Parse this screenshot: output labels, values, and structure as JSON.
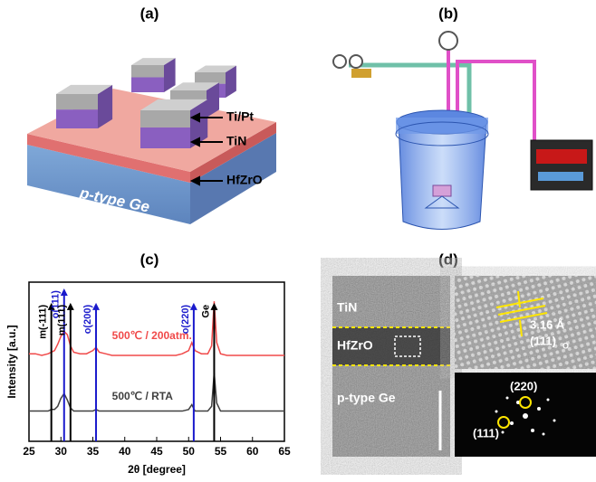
{
  "panels": {
    "a": {
      "label": "(a)",
      "layers": [
        "Ti/Pt",
        "TiN",
        "HfZrO"
      ],
      "substrate": "p-type Ge"
    },
    "b": {
      "label": "(b)"
    },
    "c": {
      "label": "(c)"
    },
    "d": {
      "label": "(d)",
      "regions": [
        "TiN",
        "HfZrO",
        "p-type Ge"
      ],
      "spacing": "3.16 Å",
      "plane": "(111)",
      "plane_phase": "O",
      "fft_spots": [
        "(220)",
        "(111)"
      ]
    }
  },
  "chart_data": {
    "type": "line",
    "x_label": "2θ [degree]",
    "y_label": "Intensity [a.u.]",
    "x": [
      25,
      26,
      27,
      28,
      28.5,
      29,
      29.5,
      30,
      30.5,
      31,
      31.5,
      32,
      33,
      34,
      35,
      35.5,
      36,
      37,
      38,
      40,
      42,
      44,
      46,
      48,
      49,
      50,
      50.5,
      51,
      52,
      53,
      53.6,
      54,
      54.4,
      55,
      56,
      58,
      60,
      62,
      64,
      65
    ],
    "series": [
      {
        "name": "500℃ / 200atm.",
        "color": "#f04a4a",
        "values": [
          55,
          55,
          54,
          55,
          56,
          57,
          61,
          66,
          69,
          67,
          60,
          56,
          55,
          55,
          57,
          59,
          56,
          55,
          54,
          54,
          54,
          54,
          54,
          54,
          55,
          57,
          62,
          57,
          55,
          55,
          60,
          88,
          62,
          55,
          54,
          54,
          54,
          54,
          54,
          54
        ]
      },
      {
        "name": "500℃ / RTA",
        "color": "#404040",
        "values": [
          19,
          19,
          19,
          19,
          20,
          20,
          22,
          27,
          30,
          26,
          21,
          19,
          19,
          19,
          19,
          20,
          19,
          19,
          19,
          19,
          19,
          19,
          19,
          19,
          19,
          20,
          23,
          19,
          19,
          19,
          22,
          43,
          24,
          19,
          19,
          19,
          19,
          19,
          19,
          19
        ]
      }
    ],
    "markers": [
      {
        "label": "m(-111)",
        "x": 28.5,
        "top": 87,
        "color": "#000000"
      },
      {
        "label": "o(111)",
        "x": 30.5,
        "top": 96,
        "color": "#1a1acc"
      },
      {
        "label": "m(111)",
        "x": 31.5,
        "top": 87,
        "color": "#000000"
      },
      {
        "label": "o(200)",
        "x": 35.5,
        "top": 87,
        "color": "#1a1acc"
      },
      {
        "label": "o(220)",
        "x": 50.8,
        "top": 87,
        "color": "#1a1acc"
      },
      {
        "label": "Ge",
        "x": 54,
        "top": 87,
        "color": "#000000"
      }
    ],
    "xlim": [
      25,
      65
    ],
    "xticks": [
      25,
      30,
      35,
      40,
      45,
      50,
      55,
      60,
      65
    ],
    "ylim": [
      0,
      100
    ]
  }
}
